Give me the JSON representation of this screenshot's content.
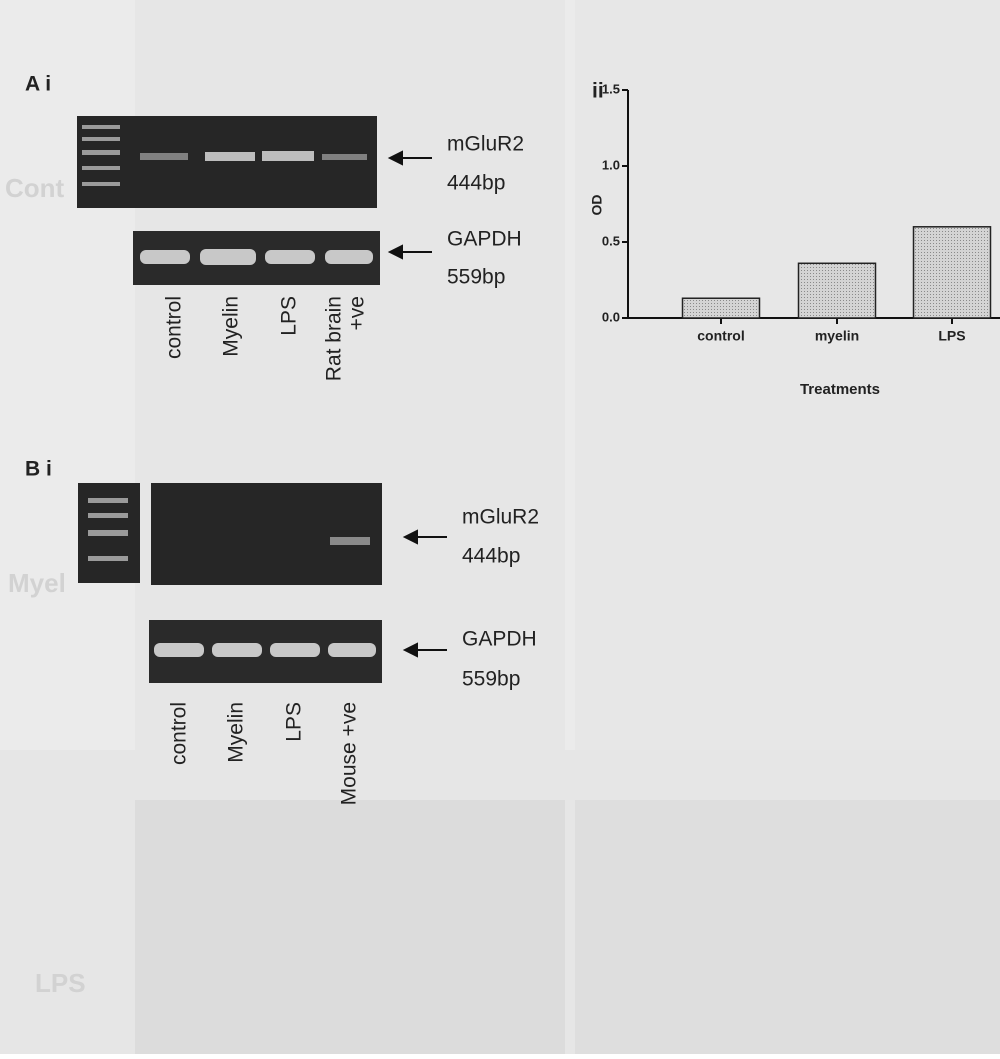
{
  "panel_a": {
    "label": "A i",
    "target_band": "mGluR2",
    "target_size": "444bp",
    "control_band": "GAPDH",
    "control_size": "559bp",
    "lanes": [
      "control",
      "Myelin",
      "LPS",
      "Rat brain",
      "+ve"
    ]
  },
  "panel_b": {
    "label": "B i",
    "target_band": "mGluR2",
    "target_size": "444bp",
    "control_band": "GAPDH",
    "control_size": "559bp",
    "lanes": [
      "control",
      "Myelin",
      "LPS",
      "Mouse +ve"
    ]
  },
  "background_labels": [
    "Cont",
    "Myel",
    "LPS"
  ],
  "chart_data": {
    "type": "bar",
    "panel_label": "ii",
    "y_label": "OD",
    "x_label": "Treatments",
    "categories": [
      "control",
      "myelin",
      "LPS"
    ],
    "values": [
      0.13,
      0.36,
      0.6
    ],
    "color": "#c8c8c8",
    "ylim": [
      0,
      1.5
    ],
    "yticks": [
      {
        "value": 0,
        "label": "0.0"
      },
      {
        "value": 0.5,
        "label": "0.5"
      },
      {
        "value": 1,
        "label": "1.0"
      },
      {
        "value": 1.5,
        "label": "1.5"
      }
    ]
  }
}
